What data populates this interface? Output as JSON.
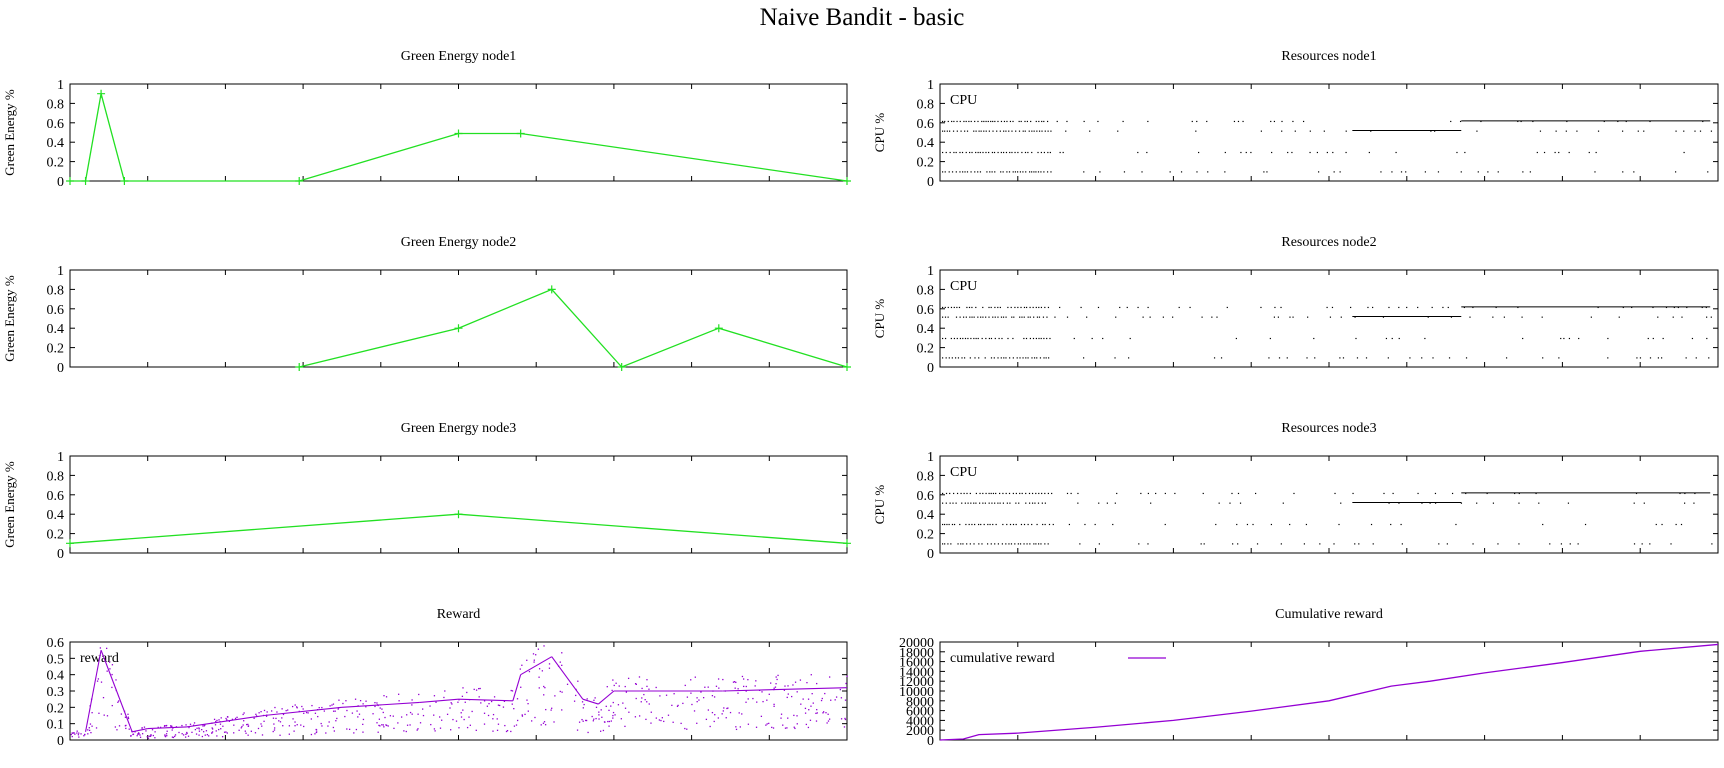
{
  "title": "Naive Bandit - basic",
  "colors": {
    "green": "#22e022",
    "purple": "#9400d3",
    "black": "#000000"
  },
  "chart_data": [
    {
      "type": "line",
      "title": "Green Energy node1",
      "ylabel": "Green Energy %",
      "ylim": [
        0,
        1
      ],
      "xlim": [
        0,
        100
      ],
      "yticks": [
        "0",
        "0.2",
        "0.4",
        "0.6",
        "0.8",
        "1"
      ],
      "markers": "plus",
      "grid": false,
      "series": [
        {
          "color": "#22e022",
          "x": [
            0,
            2,
            4,
            7,
            29.5,
            50,
            58,
            100
          ],
          "y": [
            0,
            0,
            0.9,
            0,
            0,
            0.49,
            0.49,
            0
          ]
        }
      ]
    },
    {
      "type": "scatter",
      "title": "Resources node1",
      "ylabel": "CPU %",
      "ylim": [
        0,
        1
      ],
      "xlim": [
        0,
        100
      ],
      "yticks": [
        "0",
        "0.2",
        "0.4",
        "0.6",
        "0.8",
        "1"
      ],
      "legend": [
        "CPU"
      ],
      "legend_position": "top-left",
      "grid": false,
      "levels": [
        0.1,
        0.3,
        0.52,
        0.62
      ],
      "series": [
        {
          "name": "CPU",
          "color": "#000000"
        }
      ]
    },
    {
      "type": "line",
      "title": "Green Energy node2",
      "ylabel": "Green Energy %",
      "ylim": [
        0,
        1
      ],
      "xlim": [
        0,
        100
      ],
      "yticks": [
        "0",
        "0.2",
        "0.4",
        "0.6",
        "0.8",
        "1"
      ],
      "markers": "plus",
      "grid": false,
      "series": [
        {
          "color": "#22e022",
          "x": [
            29.5,
            50,
            62,
            71,
            83.5,
            100
          ],
          "y": [
            0,
            0.4,
            0.8,
            0,
            0.4,
            0
          ]
        }
      ]
    },
    {
      "type": "scatter",
      "title": "Resources node2",
      "ylabel": "CPU %",
      "ylim": [
        0,
        1
      ],
      "xlim": [
        0,
        100
      ],
      "yticks": [
        "0",
        "0.2",
        "0.4",
        "0.6",
        "0.8",
        "1"
      ],
      "legend": [
        "CPU"
      ],
      "legend_position": "top-left",
      "grid": false,
      "levels": [
        0.1,
        0.3,
        0.52,
        0.62
      ],
      "series": [
        {
          "name": "CPU",
          "color": "#000000"
        }
      ]
    },
    {
      "type": "line",
      "title": "Green Energy node3",
      "ylabel": "Green Energy %",
      "ylim": [
        0,
        1
      ],
      "xlim": [
        0,
        100
      ],
      "yticks": [
        "0",
        "0.2",
        "0.4",
        "0.6",
        "0.8",
        "1"
      ],
      "markers": "plus",
      "grid": false,
      "series": [
        {
          "color": "#22e022",
          "x": [
            0,
            50,
            100
          ],
          "y": [
            0.1,
            0.4,
            0.1
          ]
        }
      ]
    },
    {
      "type": "scatter",
      "title": "Resources node3",
      "ylabel": "CPU %",
      "ylim": [
        0,
        1
      ],
      "xlim": [
        0,
        100
      ],
      "yticks": [
        "0",
        "0.2",
        "0.4",
        "0.6",
        "0.8",
        "1"
      ],
      "legend": [
        "CPU"
      ],
      "legend_position": "top-left",
      "grid": false,
      "levels": [
        0.1,
        0.3,
        0.52,
        0.62
      ],
      "series": [
        {
          "name": "CPU",
          "color": "#000000"
        }
      ]
    },
    {
      "type": "scatter",
      "title": "Reward",
      "ylabel": "",
      "ylim": [
        0,
        0.6
      ],
      "xlim": [
        0,
        100
      ],
      "yticks": [
        "0",
        "0.1",
        "0.2",
        "0.3",
        "0.4",
        "0.5",
        "0.6"
      ],
      "legend": [
        "reward"
      ],
      "legend_position": "top-left",
      "grid": false,
      "series": [
        {
          "name": "reward",
          "color": "#9400d3",
          "trend": {
            "x": [
              2,
              4,
              6,
              8,
              10,
              15,
              25,
              35,
              45,
              50,
              57,
              58,
              62,
              66,
              68,
              70,
              84,
              100
            ],
            "y": [
              0.05,
              0.55,
              0.3,
              0.05,
              0.07,
              0.08,
              0.15,
              0.2,
              0.23,
              0.25,
              0.24,
              0.4,
              0.51,
              0.25,
              0.22,
              0.3,
              0.3,
              0.32
            ]
          }
        }
      ]
    },
    {
      "type": "line",
      "title": "Cumulative reward",
      "ylabel": "",
      "ylim": [
        0,
        20000
      ],
      "xlim": [
        0,
        100
      ],
      "yticks": [
        "0",
        "2000",
        "4000",
        "6000",
        "8000",
        "10000",
        "12000",
        "14000",
        "16000",
        "18000",
        "20000"
      ],
      "legend": [
        "cumulative reward"
      ],
      "legend_position": "top-left",
      "grid": false,
      "series": [
        {
          "name": "cumulative reward",
          "color": "#9400d3",
          "x": [
            0,
            3,
            5,
            10,
            20,
            30,
            40,
            50,
            58,
            63,
            70,
            80,
            90,
            100
          ],
          "y": [
            0,
            200,
            1100,
            1400,
            2600,
            4000,
            5900,
            8000,
            11000,
            12000,
            13700,
            15800,
            18100,
            19500
          ]
        }
      ]
    }
  ]
}
